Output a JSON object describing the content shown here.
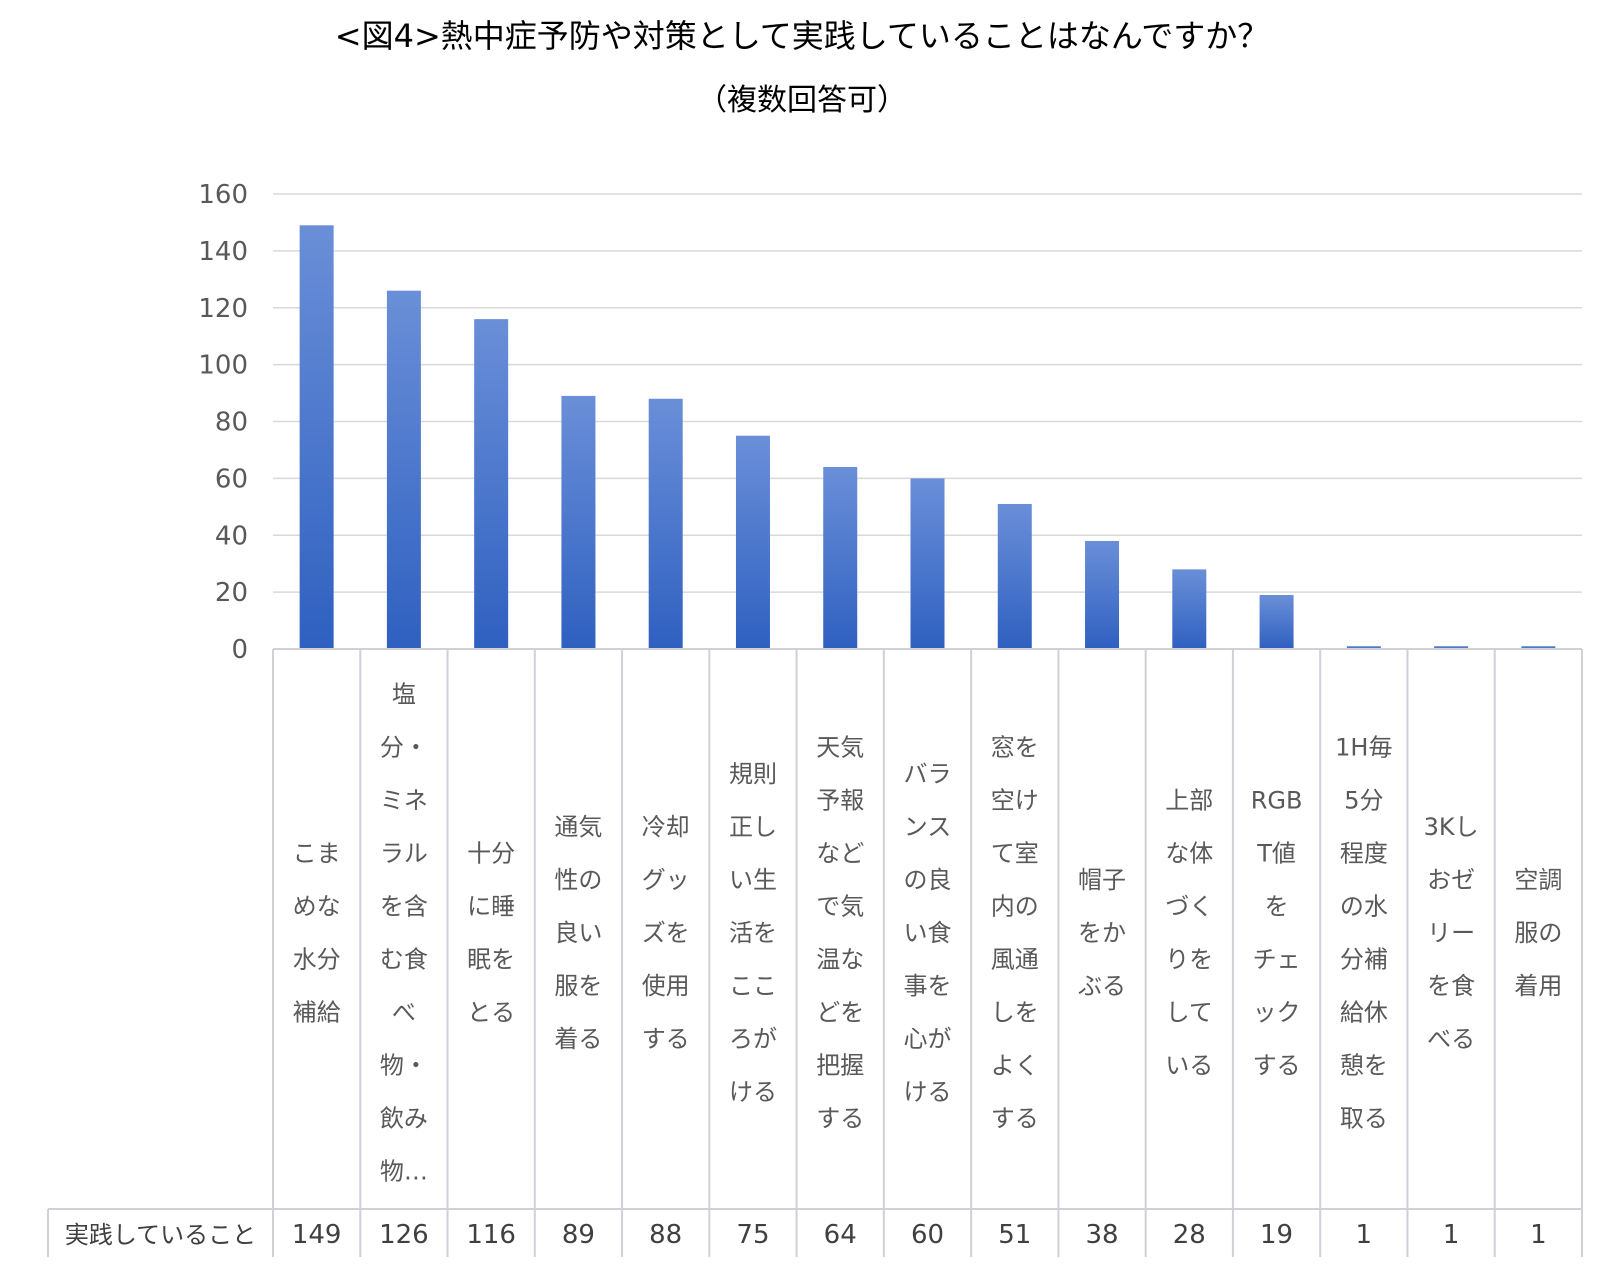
{
  "title": "<図4>熱中症予防や対策として実践していることはなんですか？",
  "subtitle": "（複数回答可）",
  "colors": {
    "bar_top": "#6a8fd8",
    "bar_bottom": "#2f60c0",
    "grid": "#d9d9d9",
    "table_line": "#d0d0d8"
  },
  "chart_data": {
    "type": "bar",
    "title": "<図4>熱中症予防や対策として実践していることはなんですか？",
    "subtitle": "（複数回答可）",
    "ylim": [
      0,
      160
    ],
    "yticks": [
      0,
      20,
      40,
      60,
      80,
      100,
      120,
      140,
      160
    ],
    "grid": true,
    "categories": [
      "こまめな水分補給",
      "塩分・ミネラルを含む食べ物・飲み物…",
      "十分に睡眠をとる",
      "通気性の良い服を着る",
      "冷却グッズを使用する",
      "規則正しい生活をこころがける",
      "天気予報などで気温などを把握する",
      "バランスの良い食事を心がける",
      "窓を空けて室内の風通しをよくする",
      "帽子をかぶる",
      "上部な体づくりをしている",
      "RGBT値をチェックする",
      "1H毎5分程度の水分補給休憩を取る",
      "3Kしおゼリーを食べる",
      "空調服の着用"
    ],
    "category_lines": [
      [
        "こま",
        "めな",
        "水分",
        "補給"
      ],
      [
        "塩",
        "分・",
        "ミネ",
        "ラル",
        "を含",
        "む食",
        "べ",
        "物・",
        "飲み",
        "物…"
      ],
      [
        "十分",
        "に睡",
        "眠を",
        "とる"
      ],
      [
        "通気",
        "性の",
        "良い",
        "服を",
        "着る"
      ],
      [
        "冷却",
        "グッ",
        "ズを",
        "使用",
        "する"
      ],
      [
        "規則",
        "正し",
        "い生",
        "活を",
        "ここ",
        "ろが",
        "ける"
      ],
      [
        "天気",
        "予報",
        "など",
        "で気",
        "温な",
        "どを",
        "把握",
        "する"
      ],
      [
        "バラ",
        "ンス",
        "の良",
        "い食",
        "事を",
        "心が",
        "ける"
      ],
      [
        "窓を",
        "空け",
        "て室",
        "内の",
        "風通",
        "しを",
        "よく",
        "する"
      ],
      [
        "帽子",
        "をか",
        "ぶる"
      ],
      [
        "上部",
        "な体",
        "づく",
        "りを",
        "して",
        "いる"
      ],
      [
        "RGB",
        "T値",
        "を",
        "チェ",
        "ック",
        "する"
      ],
      [
        "1H毎",
        "5分",
        "程度",
        "の水",
        "分補",
        "給休",
        "憩を",
        "取る"
      ],
      [
        "3Kし",
        "おゼ",
        "リー",
        "を食",
        "べる"
      ],
      [
        "空調",
        "服の",
        "着用"
      ]
    ],
    "series": [
      {
        "name": "実践していること",
        "values": [
          149,
          126,
          116,
          89,
          88,
          75,
          64,
          60,
          51,
          38,
          28,
          19,
          1,
          1,
          1
        ]
      }
    ]
  }
}
